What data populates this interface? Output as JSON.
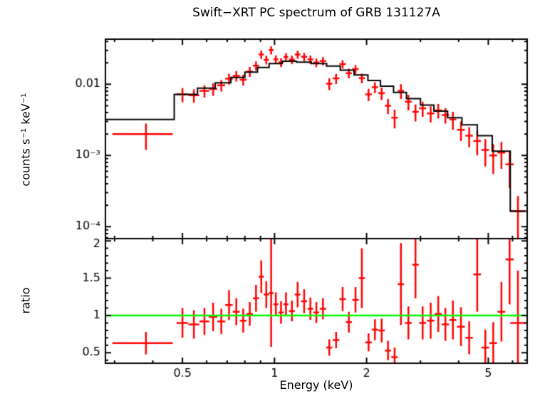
{
  "page": {
    "background": "#ffffff"
  },
  "chart_data": {
    "type": "scatter",
    "title": "Swift−XRT PC spectrum of GRB 131127A",
    "xlabel": "Energy (keV)",
    "xscale": "log",
    "xlim": [
      0.28,
      6.7
    ],
    "xticks": [
      {
        "value": 0.5,
        "label": "0.5"
      },
      {
        "value": 1,
        "label": "1"
      },
      {
        "value": 2,
        "label": "2"
      },
      {
        "value": 5,
        "label": "5"
      }
    ],
    "colors": {
      "data": "#ff0000",
      "model": "#000000",
      "reference": "#00ff00",
      "frame": "#000000"
    },
    "point_format": [
      "energy_keV",
      "energy_err_keV",
      "value",
      "value_err"
    ],
    "panels": [
      {
        "name": "spectrum",
        "ylabel": "counts s⁻¹ keV⁻¹",
        "yscale": "log",
        "ylim": [
          6.8e-05,
          0.043
        ],
        "yticks": [
          {
            "value": 0.01,
            "label": "0.01"
          },
          {
            "value": 0.001,
            "label": "10⁻³"
          },
          {
            "value": 0.0001,
            "label": "10⁻⁴"
          }
        ],
        "points": [
          [
            0.38,
            0.085,
            0.002,
            0.0008
          ],
          [
            0.5,
            0.022,
            0.0072,
            0.0016
          ],
          [
            0.545,
            0.022,
            0.007,
            0.0015
          ],
          [
            0.59,
            0.022,
            0.0081,
            0.0016
          ],
          [
            0.63,
            0.02,
            0.0086,
            0.0017
          ],
          [
            0.67,
            0.02,
            0.0097,
            0.0018
          ],
          [
            0.71,
            0.02,
            0.012,
            0.0021
          ],
          [
            0.75,
            0.02,
            0.0131,
            0.0022
          ],
          [
            0.79,
            0.02,
            0.0116,
            0.002
          ],
          [
            0.83,
            0.02,
            0.0151,
            0.0024
          ],
          [
            0.87,
            0.02,
            0.0182,
            0.0027
          ],
          [
            0.905,
            0.018,
            0.0262,
            0.0035
          ],
          [
            0.94,
            0.018,
            0.0221,
            0.0031
          ],
          [
            0.975,
            0.018,
            0.0302,
            0.004
          ],
          [
            1.01,
            0.018,
            0.0224,
            0.0031
          ],
          [
            1.05,
            0.02,
            0.0203,
            0.0029
          ],
          [
            1.09,
            0.02,
            0.0242,
            0.0033
          ],
          [
            1.14,
            0.025,
            0.0222,
            0.003
          ],
          [
            1.19,
            0.025,
            0.0262,
            0.0034
          ],
          [
            1.25,
            0.028,
            0.0243,
            0.0032
          ],
          [
            1.31,
            0.028,
            0.0223,
            0.003
          ],
          [
            1.37,
            0.03,
            0.0202,
            0.0028
          ],
          [
            1.44,
            0.035,
            0.0212,
            0.0028
          ],
          [
            1.51,
            0.035,
            0.0102,
            0.0019
          ],
          [
            1.59,
            0.04,
            0.0121,
            0.002
          ],
          [
            1.67,
            0.04,
            0.0192,
            0.0026
          ],
          [
            1.75,
            0.04,
            0.0143,
            0.0022
          ],
          [
            1.84,
            0.045,
            0.0163,
            0.0023
          ],
          [
            1.93,
            0.045,
            0.0122,
            0.0019
          ],
          [
            2.03,
            0.05,
            0.0072,
            0.0014
          ],
          [
            2.13,
            0.05,
            0.0091,
            0.0016
          ],
          [
            2.24,
            0.055,
            0.0075,
            0.0015
          ],
          [
            2.35,
            0.055,
            0.005,
            0.0012
          ],
          [
            2.47,
            0.06,
            0.0034,
            0.001
          ],
          [
            2.59,
            0.06,
            0.0081,
            0.0019
          ],
          [
            2.74,
            0.07,
            0.0057,
            0.0014
          ],
          [
            2.89,
            0.07,
            0.0041,
            0.0011
          ],
          [
            3.05,
            0.08,
            0.0046,
            0.0011
          ],
          [
            3.24,
            0.09,
            0.0039,
            0.001
          ],
          [
            3.43,
            0.09,
            0.0043,
            0.001
          ],
          [
            3.62,
            0.1,
            0.0037,
            0.0009
          ],
          [
            3.83,
            0.1,
            0.0032,
            0.0009
          ],
          [
            4.07,
            0.12,
            0.0023,
            0.0007
          ],
          [
            4.33,
            0.12,
            0.0019,
            0.0006
          ],
          [
            4.6,
            0.13,
            0.0016,
            0.0006
          ],
          [
            4.89,
            0.14,
            0.0012,
            0.0005
          ],
          [
            5.19,
            0.15,
            0.001,
            0.00045
          ],
          [
            5.52,
            0.16,
            0.0011,
            0.00045
          ],
          [
            5.87,
            0.18,
            0.00075,
            0.0004
          ],
          [
            6.25,
            0.35,
            0.000165,
            0.000105
          ]
        ],
        "model_steps": [
          [
            0.28,
            0.47,
            0.0032
          ],
          [
            0.47,
            0.56,
            0.0072
          ],
          [
            0.56,
            0.64,
            0.0088
          ],
          [
            0.64,
            0.72,
            0.0105
          ],
          [
            0.72,
            0.8,
            0.0125
          ],
          [
            0.8,
            0.88,
            0.0148
          ],
          [
            0.88,
            0.96,
            0.0172
          ],
          [
            0.96,
            1.06,
            0.0195
          ],
          [
            1.06,
            1.18,
            0.021
          ],
          [
            1.18,
            1.32,
            0.0205
          ],
          [
            1.32,
            1.48,
            0.0195
          ],
          [
            1.48,
            1.64,
            0.018
          ],
          [
            1.64,
            1.82,
            0.0158
          ],
          [
            1.82,
            2.02,
            0.0135
          ],
          [
            2.02,
            2.22,
            0.0113
          ],
          [
            2.22,
            2.45,
            0.0094
          ],
          [
            2.45,
            2.7,
            0.0077
          ],
          [
            2.7,
            3.0,
            0.0063
          ],
          [
            3.0,
            3.32,
            0.0051
          ],
          [
            3.32,
            3.68,
            0.0042
          ],
          [
            3.68,
            4.1,
            0.0034
          ],
          [
            4.1,
            4.6,
            0.0027
          ],
          [
            4.6,
            5.15,
            0.0019
          ],
          [
            5.15,
            5.9,
            0.00115
          ],
          [
            5.9,
            6.7,
            0.000165
          ]
        ]
      },
      {
        "name": "ratio",
        "ylabel": "ratio",
        "yscale": "linear",
        "ylim": [
          0.36,
          2.03
        ],
        "yticks": [
          {
            "value": 2,
            "label": "2"
          },
          {
            "value": 1.5,
            "label": "1.5"
          },
          {
            "value": 1,
            "label": "1"
          },
          {
            "value": 0.5,
            "label": "0.5"
          }
        ],
        "reference_line": {
          "y": 1
        },
        "points": [
          [
            0.38,
            0.085,
            0.63,
            0.15
          ],
          [
            0.5,
            0.022,
            0.9,
            0.2
          ],
          [
            0.545,
            0.022,
            0.88,
            0.19
          ],
          [
            0.59,
            0.022,
            0.92,
            0.18
          ],
          [
            0.63,
            0.02,
            0.98,
            0.19
          ],
          [
            0.67,
            0.02,
            0.92,
            0.17
          ],
          [
            0.71,
            0.02,
            1.14,
            0.2
          ],
          [
            0.75,
            0.02,
            1.05,
            0.18
          ],
          [
            0.79,
            0.02,
            0.93,
            0.16
          ],
          [
            0.83,
            0.02,
            1.02,
            0.16
          ],
          [
            0.87,
            0.02,
            1.23,
            0.18
          ],
          [
            0.905,
            0.018,
            1.52,
            0.22
          ],
          [
            0.94,
            0.018,
            1.28,
            0.18
          ],
          [
            0.975,
            0.018,
            1.3,
            0.72
          ],
          [
            1.01,
            0.018,
            1.15,
            0.16
          ],
          [
            1.05,
            0.02,
            1.04,
            0.15
          ],
          [
            1.09,
            0.02,
            1.15,
            0.16
          ],
          [
            1.14,
            0.025,
            1.06,
            0.14
          ],
          [
            1.19,
            0.025,
            1.28,
            0.17
          ],
          [
            1.25,
            0.028,
            1.19,
            0.16
          ],
          [
            1.31,
            0.028,
            1.09,
            0.15
          ],
          [
            1.37,
            0.03,
            1.04,
            0.14
          ],
          [
            1.44,
            0.035,
            1.09,
            0.14
          ],
          [
            1.51,
            0.035,
            0.57,
            0.11
          ],
          [
            1.59,
            0.04,
            0.67,
            0.11
          ],
          [
            1.67,
            0.04,
            1.22,
            0.16
          ],
          [
            1.75,
            0.04,
            0.91,
            0.14
          ],
          [
            1.84,
            0.045,
            1.21,
            0.17
          ],
          [
            1.93,
            0.045,
            1.5,
            0.4
          ],
          [
            2.03,
            0.05,
            0.64,
            0.12
          ],
          [
            2.13,
            0.05,
            0.81,
            0.14
          ],
          [
            2.24,
            0.055,
            0.8,
            0.16
          ],
          [
            2.35,
            0.055,
            0.53,
            0.13
          ],
          [
            2.47,
            0.06,
            0.44,
            0.13
          ],
          [
            2.59,
            0.06,
            1.42,
            0.55
          ],
          [
            2.74,
            0.07,
            0.9,
            0.22
          ],
          [
            2.89,
            0.07,
            1.68,
            0.45
          ],
          [
            3.05,
            0.08,
            0.9,
            0.22
          ],
          [
            3.24,
            0.09,
            0.93,
            0.24
          ],
          [
            3.43,
            0.09,
            1.02,
            0.24
          ],
          [
            3.62,
            0.1,
            0.88,
            0.22
          ],
          [
            3.83,
            0.1,
            0.94,
            0.26
          ],
          [
            4.07,
            0.12,
            0.85,
            0.26
          ],
          [
            4.33,
            0.12,
            0.7,
            0.22
          ],
          [
            4.6,
            0.13,
            1.55,
            0.5
          ],
          [
            4.89,
            0.14,
            0.57,
            0.24
          ],
          [
            5.19,
            0.15,
            0.63,
            0.28
          ],
          [
            5.52,
            0.16,
            1.05,
            0.4
          ],
          [
            5.87,
            0.18,
            1.75,
            0.6
          ],
          [
            6.25,
            0.35,
            0.9,
            0.7
          ]
        ]
      }
    ]
  }
}
